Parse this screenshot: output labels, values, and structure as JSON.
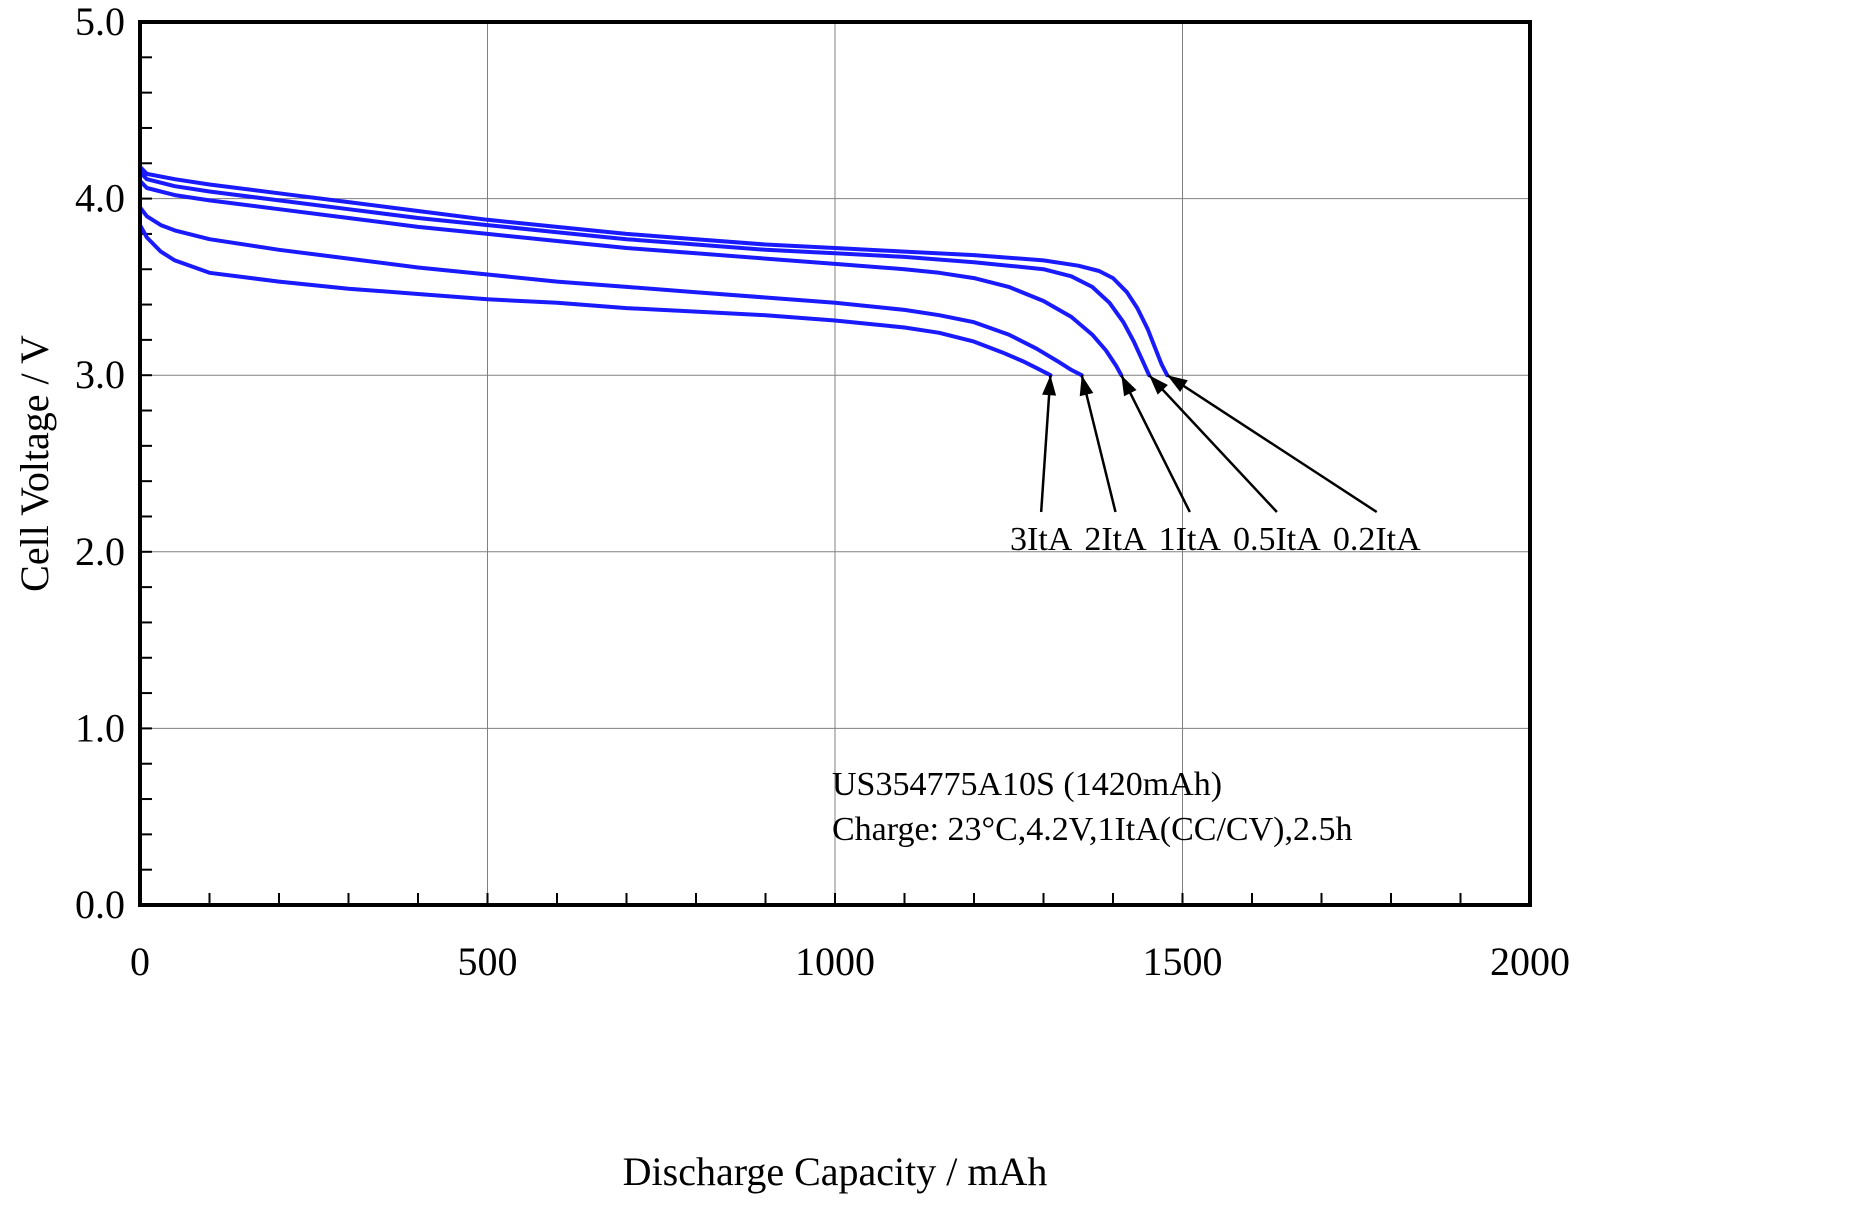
{
  "chart_data": {
    "type": "line",
    "title": "",
    "xlabel": "Discharge Capacity / mAh",
    "ylabel": "Cell Voltage / V",
    "xlim": [
      0,
      2000
    ],
    "ylim": [
      0.0,
      5.0
    ],
    "x_ticks": [
      "0",
      "500",
      "1000",
      "1500",
      "2000"
    ],
    "y_ticks": [
      "0.0",
      "1.0",
      "2.0",
      "3.0",
      "4.0",
      "5.0"
    ],
    "grid": true,
    "line_color": "#1a1aff",
    "series": [
      {
        "name": "0.2ItA",
        "x": [
          0,
          10,
          50,
          100,
          200,
          300,
          400,
          500,
          600,
          700,
          800,
          900,
          1000,
          1100,
          1200,
          1300,
          1350,
          1380,
          1400,
          1420,
          1435,
          1450,
          1460,
          1470,
          1478
        ],
        "y": [
          4.18,
          4.14,
          4.11,
          4.08,
          4.03,
          3.98,
          3.93,
          3.88,
          3.84,
          3.8,
          3.77,
          3.74,
          3.72,
          3.7,
          3.68,
          3.65,
          3.62,
          3.59,
          3.55,
          3.47,
          3.38,
          3.26,
          3.16,
          3.06,
          3.0
        ]
      },
      {
        "name": "0.5ItA",
        "x": [
          0,
          10,
          50,
          100,
          200,
          300,
          400,
          500,
          600,
          700,
          800,
          900,
          1000,
          1100,
          1200,
          1250,
          1300,
          1340,
          1370,
          1395,
          1415,
          1430,
          1445,
          1452
        ],
        "y": [
          4.15,
          4.11,
          4.07,
          4.04,
          3.99,
          3.94,
          3.89,
          3.85,
          3.81,
          3.77,
          3.74,
          3.71,
          3.69,
          3.67,
          3.64,
          3.62,
          3.6,
          3.56,
          3.5,
          3.41,
          3.3,
          3.19,
          3.06,
          3.0
        ]
      },
      {
        "name": "1ItA",
        "x": [
          0,
          10,
          50,
          100,
          200,
          300,
          400,
          500,
          600,
          700,
          800,
          900,
          1000,
          1100,
          1150,
          1200,
          1250,
          1300,
          1340,
          1370,
          1390,
          1405,
          1412
        ],
        "y": [
          4.1,
          4.06,
          4.02,
          3.99,
          3.94,
          3.89,
          3.84,
          3.8,
          3.76,
          3.72,
          3.69,
          3.66,
          3.63,
          3.6,
          3.58,
          3.55,
          3.5,
          3.42,
          3.33,
          3.23,
          3.14,
          3.05,
          3.0
        ]
      },
      {
        "name": "2ItA",
        "x": [
          0,
          10,
          30,
          50,
          100,
          200,
          300,
          400,
          500,
          600,
          700,
          800,
          900,
          1000,
          1100,
          1150,
          1200,
          1250,
          1290,
          1320,
          1340,
          1355
        ],
        "y": [
          3.95,
          3.9,
          3.85,
          3.82,
          3.77,
          3.71,
          3.66,
          3.61,
          3.57,
          3.53,
          3.5,
          3.47,
          3.44,
          3.41,
          3.37,
          3.34,
          3.3,
          3.23,
          3.15,
          3.08,
          3.03,
          3.0
        ]
      },
      {
        "name": "3ItA",
        "x": [
          0,
          10,
          30,
          50,
          100,
          200,
          300,
          400,
          500,
          600,
          700,
          800,
          900,
          1000,
          1050,
          1100,
          1150,
          1200,
          1240,
          1270,
          1290,
          1310
        ],
        "y": [
          3.85,
          3.78,
          3.7,
          3.65,
          3.58,
          3.53,
          3.49,
          3.46,
          3.43,
          3.41,
          3.38,
          3.36,
          3.34,
          3.31,
          3.29,
          3.27,
          3.24,
          3.19,
          3.13,
          3.08,
          3.04,
          3.0
        ]
      }
    ],
    "arrows": [
      {
        "label": "3ItA",
        "target": [
          1310,
          3.0
        ]
      },
      {
        "label": "2ItA",
        "target": [
          1355,
          3.0
        ]
      },
      {
        "label": "1ItA",
        "target": [
          1412,
          3.0
        ]
      },
      {
        "label": "0.5ItA",
        "target": [
          1452,
          3.0
        ]
      },
      {
        "label": "0.2ItA",
        "target": [
          1478,
          3.0
        ]
      }
    ],
    "rate_labels": [
      "3ItA",
      "2ItA",
      "1ItA",
      "0.5ItA",
      "0.2ItA"
    ],
    "annotation": {
      "line1": "US354775A10S (1420mAh)",
      "line2": "Charge: 23°C,4.2V,1ItA(CC/CV),2.5h"
    }
  }
}
